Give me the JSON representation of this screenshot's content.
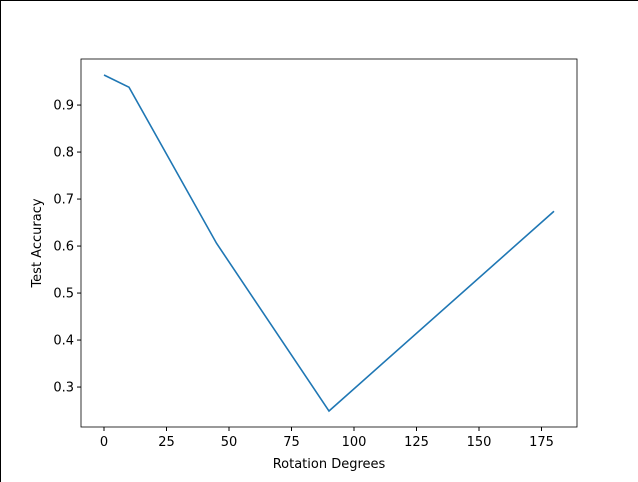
{
  "chart_data": {
    "type": "line",
    "x_label": "Rotation Degrees",
    "y_label": "Test Accuracy",
    "x": [
      0,
      10,
      45,
      90,
      180
    ],
    "series": [
      {
        "color": "#1f77b4",
        "values": [
          0.964,
          0.938,
          0.606,
          0.249,
          0.674
        ]
      }
    ],
    "xlim": [
      -9.2,
      189.2
    ],
    "xticks": [
      0,
      25,
      50,
      75,
      100,
      125,
      150,
      175
    ],
    "ylim": [
      0.215,
      0.998
    ],
    "yticks": [
      0.3,
      0.4,
      0.5,
      0.6,
      0.7,
      0.8,
      0.9
    ],
    "grid": false
  }
}
